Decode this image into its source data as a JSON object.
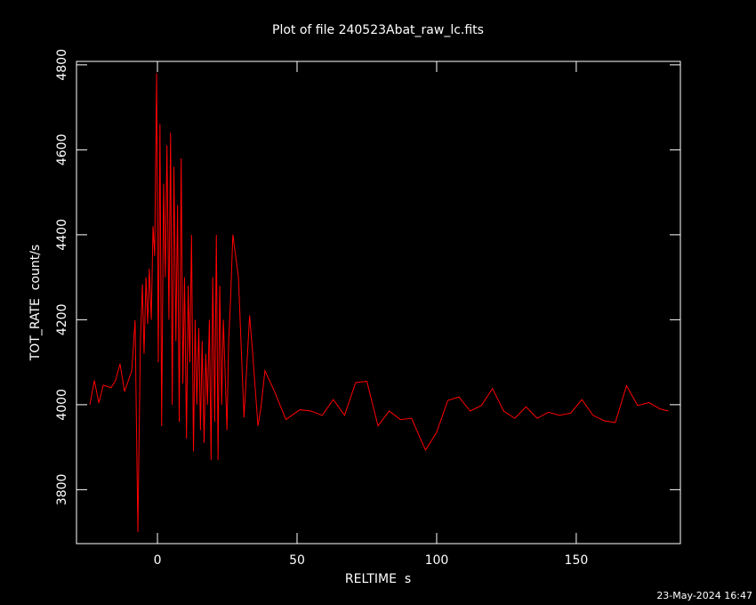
{
  "chart_data": {
    "type": "line",
    "title": "Plot of file 240523Abat_raw_lc.fits",
    "x_label": "RELTIME  s",
    "y_label": "TOT_RATE  count/s",
    "footer": "23-May-2024 16:47",
    "color": "#ff0000",
    "x": [
      -24.2,
      -22.6,
      -21,
      -19.4,
      -16.6,
      -15,
      -13.4,
      -11.8,
      -9.2,
      -8,
      -7.6,
      -7,
      -6.7,
      -6.1,
      -5.4,
      -4.8,
      -4.1,
      -3.5,
      -2.9,
      -2.2,
      -1.6,
      -1.0,
      -0.3,
      0.3,
      0.9,
      1.5,
      2.2,
      2.8,
      3.4,
      4.1,
      4.7,
      5.3,
      5.9,
      6.6,
      7.2,
      7.8,
      8.5,
      9.1,
      9.7,
      10.4,
      11.0,
      11.6,
      12.2,
      12.9,
      13.5,
      14.1,
      14.8,
      15.4,
      16.0,
      16.7,
      17.3,
      17.9,
      18.6,
      19.2,
      19.8,
      20.5,
      21.1,
      21.7,
      22.3,
      23.0,
      23.6,
      24.2,
      24.9,
      25.5,
      26.2,
      27,
      29,
      31,
      33,
      34,
      36,
      37,
      38.5,
      42,
      46,
      51,
      55,
      59,
      63,
      67,
      71,
      75,
      79,
      83,
      87,
      91,
      96,
      100,
      104,
      108,
      112,
      116,
      120,
      124,
      128,
      132,
      136,
      140,
      144,
      148,
      152,
      156,
      160,
      164,
      168,
      172,
      176,
      180,
      183
    ],
    "values": [
      4000,
      4057,
      4004,
      4046,
      4040,
      4057,
      4096,
      4031,
      4080,
      4199,
      3990,
      3700,
      3864,
      4150,
      4283,
      4120,
      4300,
      4190,
      4320,
      4200,
      4420,
      4350,
      4780,
      4100,
      4660,
      3950,
      4520,
      4300,
      4610,
      4200,
      4640,
      4000,
      4560,
      4150,
      4470,
      3960,
      4580,
      4050,
      4300,
      3920,
      4280,
      4100,
      4400,
      3890,
      4200,
      4000,
      4180,
      3940,
      4150,
      3910,
      4120,
      4000,
      4200,
      3870,
      4300,
      3960,
      4400,
      3870,
      4280,
      4000,
      4200,
      4080,
      3940,
      4150,
      4250,
      4400,
      4300,
      3970,
      4210,
      4130,
      3950,
      3990,
      4080,
      4030,
      3965,
      3988,
      3985,
      3975,
      4012,
      3975,
      4052,
      4055,
      3950,
      3985,
      3965,
      3968,
      3893,
      3935,
      4010,
      4018,
      3985,
      3998,
      4038,
      3985,
      3968,
      3995,
      3968,
      3982,
      3975,
      3980,
      4012,
      3975,
      3962,
      3958,
      4045,
      3998,
      4005,
      3990,
      3985
    ],
    "xlim": [
      -29,
      187.3
    ],
    "ylim": [
      3673,
      4808
    ],
    "xticks": [
      0,
      50,
      100,
      150
    ],
    "yticks": [
      3800,
      4000,
      4200,
      4400,
      4600,
      4800
    ]
  }
}
